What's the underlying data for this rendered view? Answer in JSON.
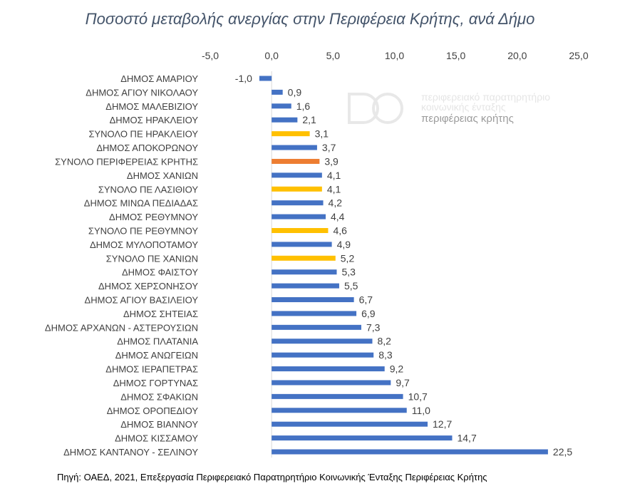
{
  "chart_data": {
    "type": "bar",
    "orientation": "horizontal",
    "title": "Ποσοστό μεταβολής ανεργίας στην Περιφέρεια Κρήτης, ανά Δήμο",
    "xlim": [
      -5,
      25
    ],
    "x_ticks": [
      "-5,0",
      "0,0",
      "5,0",
      "10,0",
      "15,0",
      "20,0",
      "25,0"
    ],
    "x_tick_values": [
      -5,
      0,
      5,
      10,
      15,
      20,
      25
    ],
    "axis_position": "top",
    "grid": false,
    "categories": [
      "ΔΗΜΟΣ ΑΜΑΡΙΟΥ",
      "ΔΗΜΟΣ ΑΓΙΟΥ ΝΙΚΟΛΑΟΥ",
      "ΔΗΜΟΣ ΜΑΛΕΒΙΖΙΟΥ",
      "ΔΗΜΟΣ ΗΡΑΚΛΕΙΟΥ",
      "ΣΥΝΟΛΟ ΠΕ ΗΡΑΚΛΕΙΟΥ",
      "ΔΗΜΟΣ ΑΠΟΚΟΡΩΝΟΥ",
      "ΣΥΝΟΛΟ ΠΕΡΙΦΕΡΕΙΑΣ ΚΡΗΤΗΣ",
      "ΔΗΜΟΣ ΧΑΝΙΩΝ",
      "ΣΥΝΟΛΟ ΠΕ ΛΑΣΙΘΙΟΥ",
      "ΔΗΜΟΣ ΜΙΝΩΑ ΠΕΔΙΑΔΑΣ",
      "ΔΗΜΟΣ ΡΕΘΥΜΝΟΥ",
      "ΣΥΝΟΛΟ ΠΕ ΡΕΘΥΜΝΟΥ",
      "ΔΗΜΟΣ ΜΥΛΟΠΟΤΑΜΟΥ",
      "ΣΥΝΟΛΟ ΠΕ ΧΑΝΙΩΝ",
      "ΔΗΜΟΣ ΦΑΙΣΤΟΥ",
      "ΔΗΜΟΣ ΧΕΡΣΟΝΗΣΟΥ",
      "ΔΗΜΟΣ ΑΓΙΟΥ ΒΑΣΙΛΕΙΟΥ",
      "ΔΗΜΟΣ ΣΗΤΕΙΑΣ",
      "ΔΗΜΟΣ ΑΡΧΑΝΩΝ - ΑΣΤΕΡΟΥΣΙΩΝ",
      "ΔΗΜΟΣ ΠΛΑΤΑΝΙΑ",
      "ΔΗΜΟΣ ΑΝΩΓΕΙΩΝ",
      "ΔΗΜΟΣ ΙΕΡΑΠΕΤΡΑΣ",
      "ΔΗΜΟΣ ΓΟΡΤΥΝΑΣ",
      "ΔΗΜΟΣ ΣΦΑΚΙΩΝ",
      "ΔΗΜΟΣ ΟΡΟΠΕΔΙΟΥ",
      "ΔΗΜΟΣ ΒΙΑΝΝΟΥ",
      "ΔΗΜΟΣ ΚΙΣΣΑΜΟΥ",
      "ΔΗΜΟΣ ΚΑΝΤΑΝΟΥ - ΣΕΛΙΝΟΥ"
    ],
    "values": [
      -1.0,
      0.9,
      1.6,
      2.1,
      3.1,
      3.7,
      3.9,
      4.1,
      4.1,
      4.2,
      4.4,
      4.6,
      4.9,
      5.2,
      5.3,
      5.5,
      6.7,
      6.9,
      7.3,
      8.2,
      8.3,
      9.2,
      9.7,
      10.7,
      11.0,
      12.7,
      14.7,
      22.5
    ],
    "value_labels": [
      "-1,0",
      "0,9",
      "1,6",
      "2,1",
      "3,1",
      "3,7",
      "3,9",
      "4,1",
      "4,1",
      "4,2",
      "4,4",
      "4,6",
      "4,9",
      "5,2",
      "5,3",
      "5,5",
      "6,7",
      "6,9",
      "7,3",
      "8,2",
      "8,3",
      "9,2",
      "9,7",
      "10,7",
      "11,0",
      "12,7",
      "14,7",
      "22,5"
    ],
    "bar_groups": [
      "municipality",
      "municipality",
      "municipality",
      "municipality",
      "prefecture",
      "municipality",
      "region",
      "municipality",
      "prefecture",
      "municipality",
      "municipality",
      "prefecture",
      "municipality",
      "prefecture",
      "municipality",
      "municipality",
      "municipality",
      "municipality",
      "municipality",
      "municipality",
      "municipality",
      "municipality",
      "municipality",
      "municipality",
      "municipality",
      "municipality",
      "municipality",
      "municipality"
    ],
    "colors": {
      "municipality": "#4472c4",
      "prefecture": "#ffc000",
      "region": "#ed7d31",
      "axis": "#d9d9d9",
      "text": "#404040",
      "title": "#44546a"
    }
  },
  "logo": {
    "line1": "περιφερειακό παρατηρητήριο",
    "line2": "κοινωνικής ένταξης",
    "line3": "περιφέρειας κρήτης"
  },
  "source": "Πηγή: ΟΑΕΔ,  2021, Επεξεργασία Περιφερειακό Παρατηρητήριο Κοινωνικής Ένταξης Περιφέρειας Κρήτης"
}
